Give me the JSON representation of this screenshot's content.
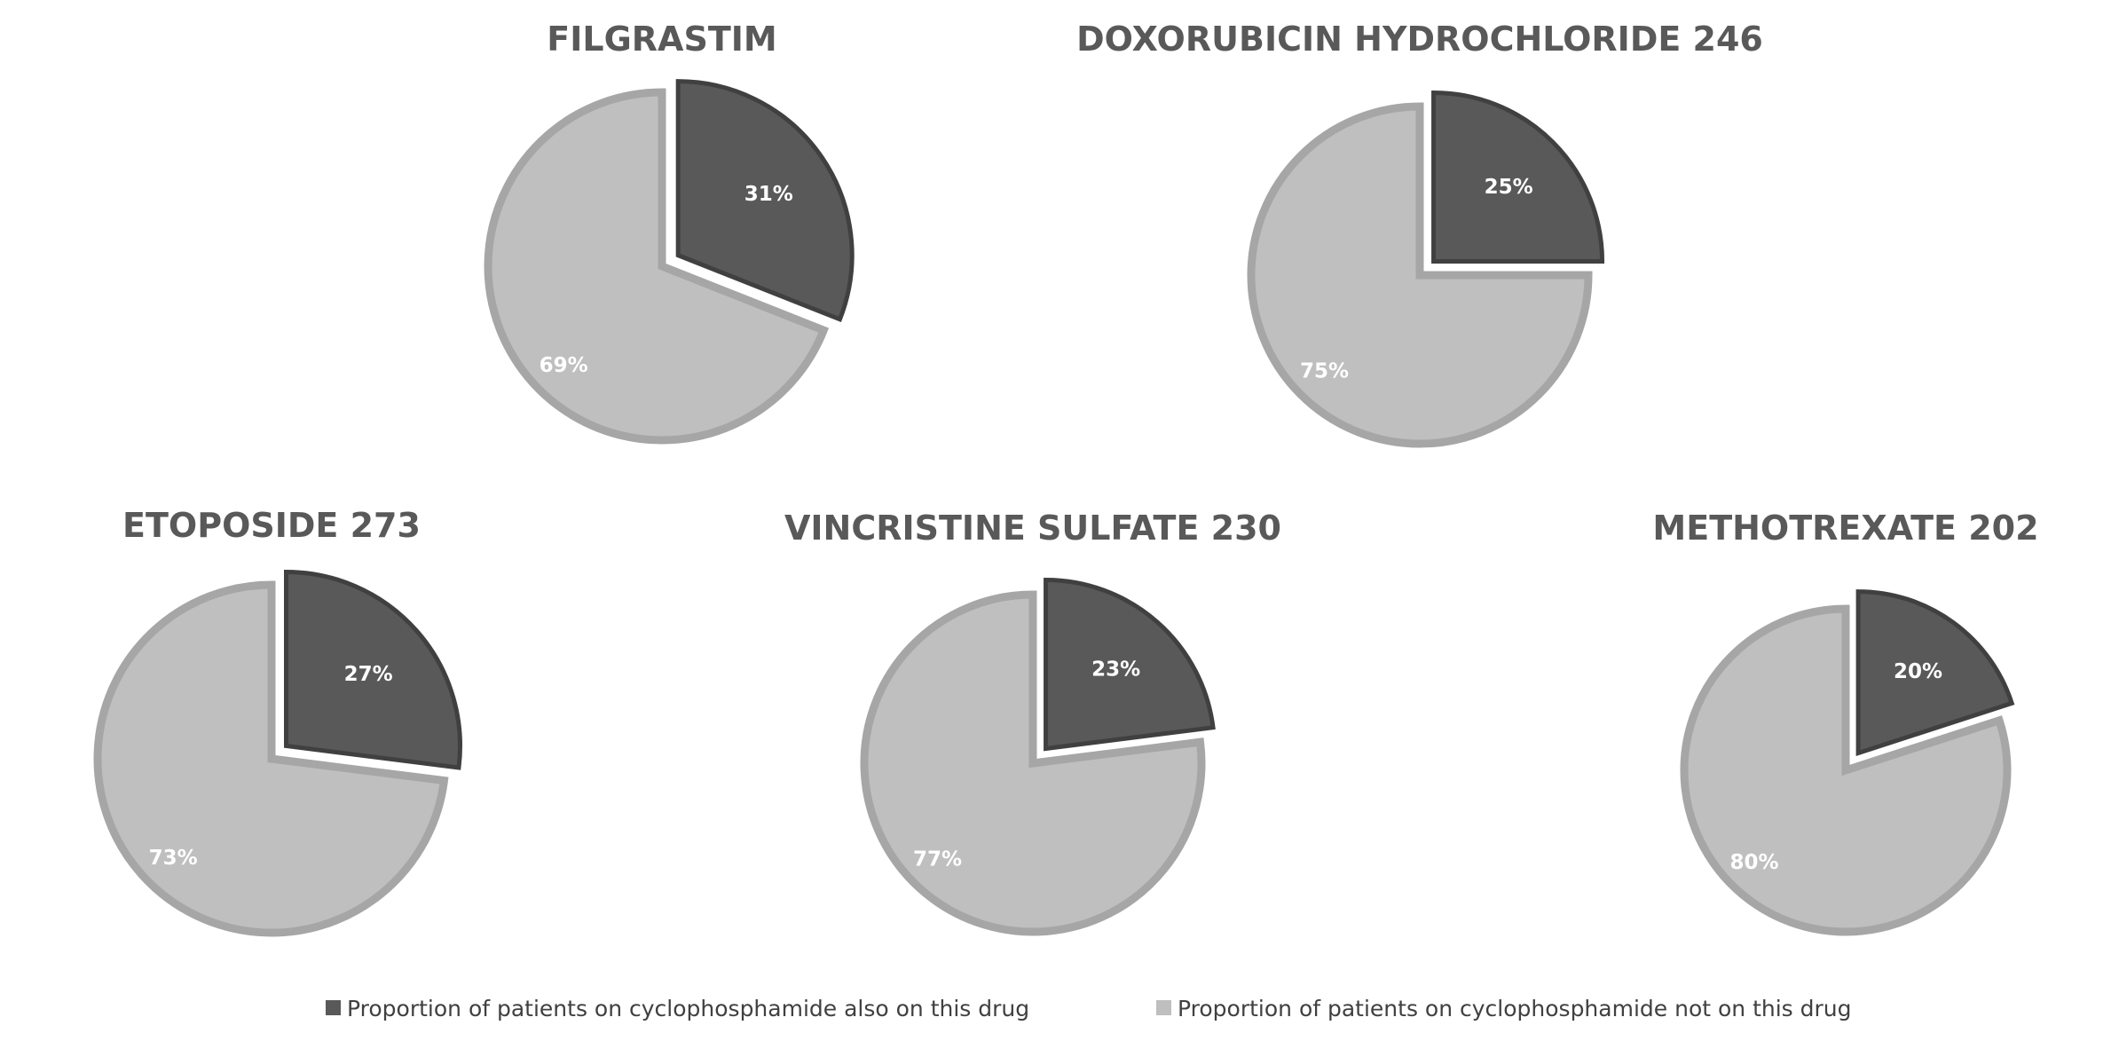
{
  "chart_data": {
    "type": "pie",
    "colors": {
      "also": "#595959",
      "also_border": "#404040",
      "not": "#bfbfbf",
      "not_border": "#a6a6a6"
    },
    "legend": {
      "placement": "bottom",
      "items": [
        {
          "label": "Proportion of patients on cyclophosphamide also on this drug",
          "color": "#595959"
        },
        {
          "label": "Proportion of patients on cyclophosphamide not on this drug",
          "color": "#bfbfbf"
        }
      ]
    },
    "charts": [
      {
        "title": "FILGRASTIM",
        "values": [
          31,
          69
        ],
        "labels": [
          "31%",
          "69%"
        ]
      },
      {
        "title": "DOXORUBICIN HYDROCHLORIDE 246",
        "values": [
          25,
          75
        ],
        "labels": [
          "25%",
          "75%"
        ]
      },
      {
        "title": "ETOPOSIDE 273",
        "values": [
          27,
          73
        ],
        "labels": [
          "27%",
          "73%"
        ]
      },
      {
        "title": "VINCRISTINE SULFATE 230",
        "values": [
          23,
          77
        ],
        "labels": [
          "23%",
          "77%"
        ]
      },
      {
        "title": "METHOTREXATE 202",
        "values": [
          20,
          80
        ],
        "labels": [
          "20%",
          "80%"
        ]
      }
    ]
  }
}
